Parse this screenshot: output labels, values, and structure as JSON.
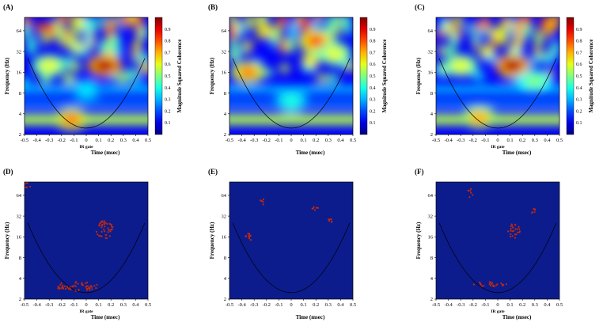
{
  "figure": {
    "panels": [
      {
        "label": "(A)",
        "kind": "coherence",
        "has_ir_gate": true
      },
      {
        "label": "(B)",
        "kind": "coherence",
        "has_ir_gate": false
      },
      {
        "label": "(C)",
        "kind": "coherence",
        "has_ir_gate": true
      },
      {
        "label": "(D)",
        "kind": "significance",
        "has_ir_gate": true
      },
      {
        "label": "(E)",
        "kind": "significance",
        "has_ir_gate": false
      },
      {
        "label": "(F)",
        "kind": "significance",
        "has_ir_gate": true
      }
    ],
    "ir_gate_label": "IR gate"
  },
  "chart_data": {
    "type": "heatmap",
    "xlabel": "Time (msec)",
    "ylabel": "Frequency (Hz)",
    "colorbar_label": "Magnitude Squared Coherence",
    "xlim": [
      -0.5,
      0.5
    ],
    "ylim": [
      2,
      100
    ],
    "y_scale": "log2",
    "xticks": [
      "-0.5",
      "-0.4",
      "-0.3",
      "-0.2",
      "-0.1",
      "0",
      "0.1",
      "0.2",
      "0.3",
      "0.4",
      "0.5"
    ],
    "yticks": [
      "2",
      "4",
      "8",
      "16",
      "32",
      "64"
    ],
    "colorbar_ticks": [
      "0.1",
      "0.2",
      "0.3",
      "0.4",
      "0.5",
      "0.6",
      "0.7",
      "0.8",
      "0.9"
    ],
    "colorbar_range": [
      0,
      1
    ],
    "colors": {
      "significance_background": "#0c1c8c",
      "significance_marks": "#c02810",
      "cone_of_influence": "#000000"
    },
    "panels": [
      {
        "label": "(A)",
        "blobs": [
          {
            "t": 0.15,
            "f": 20,
            "coherence": 0.95
          },
          {
            "t": -0.12,
            "f": 3.3,
            "coherence": 0.75
          },
          {
            "t": 0.0,
            "f": 9,
            "coherence": 0.35
          },
          {
            "t": -0.3,
            "f": 20,
            "coherence": 0.6
          }
        ]
      },
      {
        "label": "(B)",
        "blobs": [
          {
            "t": -0.35,
            "f": 16,
            "coherence": 0.75
          },
          {
            "t": 0.2,
            "f": 45,
            "coherence": 0.8
          },
          {
            "t": 0.0,
            "f": 6,
            "coherence": 0.4
          },
          {
            "t": 0.35,
            "f": 30,
            "coherence": 0.6
          }
        ]
      },
      {
        "label": "(C)",
        "blobs": [
          {
            "t": 0.12,
            "f": 20,
            "coherence": 0.95
          },
          {
            "t": -0.15,
            "f": 3.5,
            "coherence": 0.7
          },
          {
            "t": -0.3,
            "f": 20,
            "coherence": 0.6
          },
          {
            "t": 0.3,
            "f": 12,
            "coherence": 0.5
          }
        ]
      },
      {
        "label": "(D)",
        "significant_regions": [
          {
            "t_range": [
              0.08,
              0.22
            ],
            "f_range": [
              15,
              28
            ]
          },
          {
            "t_range": [
              -0.25,
              0.1
            ],
            "f_range": [
              2.6,
              3.6
            ]
          },
          {
            "t_range": [
              -0.5,
              -0.45
            ],
            "f_range": [
              80,
              100
            ]
          }
        ]
      },
      {
        "label": "(E)",
        "significant_regions": [
          {
            "t_range": [
              -0.38,
              -0.32
            ],
            "f_range": [
              13,
              18
            ]
          },
          {
            "t_range": [
              -0.25,
              -0.22
            ],
            "f_range": [
              45,
              60
            ]
          },
          {
            "t_range": [
              0.17,
              0.23
            ],
            "f_range": [
              38,
              44
            ]
          },
          {
            "t_range": [
              0.3,
              0.33
            ],
            "f_range": [
              26,
              30
            ]
          }
        ]
      },
      {
        "label": "(F)",
        "significant_regions": [
          {
            "t_range": [
              0.08,
              0.18
            ],
            "f_range": [
              15,
              25
            ]
          },
          {
            "t_range": [
              -0.2,
              0.07
            ],
            "f_range": [
              3.0,
              3.6
            ]
          },
          {
            "t_range": [
              -0.25,
              -0.2
            ],
            "f_range": [
              60,
              80
            ]
          },
          {
            "t_range": [
              0.27,
              0.3
            ],
            "f_range": [
              35,
              42
            ]
          }
        ]
      }
    ]
  }
}
